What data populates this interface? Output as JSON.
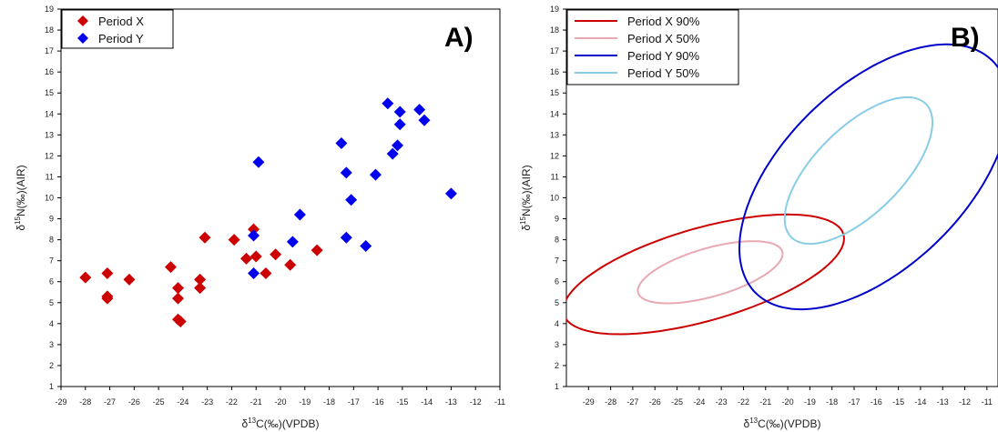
{
  "chart_data": [
    {
      "type": "scatter",
      "panel_label": "A)",
      "xlabel": "δ13C(‰)(VPDB)",
      "ylabel": "δ15N(‰)(AIR)",
      "xlabel_parts": {
        "pre": "δ",
        "sup": "13",
        "post": "C(‰)(VPDB)"
      },
      "ylabel_parts": {
        "pre": "δ",
        "sup": "15",
        "post": "N(‰)(AIR)"
      },
      "xlim": [
        -29,
        -11
      ],
      "ylim": [
        1,
        19
      ],
      "x_ticks": [
        "-29",
        "-28",
        "-27",
        "-26",
        "-25",
        "-24",
        "-23",
        "-22",
        "-21",
        "-20",
        "-19",
        "-18",
        "-17",
        "-16",
        "-15",
        "-14",
        "-13",
        "-12",
        "-11"
      ],
      "y_ticks": [
        "1",
        "2",
        "3",
        "4",
        "5",
        "6",
        "7",
        "8",
        "9",
        "10",
        "11",
        "12",
        "13",
        "14",
        "15",
        "16",
        "17",
        "18",
        "19"
      ],
      "legend_position": "top-left",
      "series": [
        {
          "name": "Period X",
          "color": "#cc0000",
          "marker": "diamond",
          "points": [
            [
              -28.0,
              6.2
            ],
            [
              -27.1,
              6.4
            ],
            [
              -27.1,
              5.3
            ],
            [
              -27.1,
              5.2
            ],
            [
              -26.2,
              6.1
            ],
            [
              -24.5,
              6.7
            ],
            [
              -24.2,
              5.7
            ],
            [
              -24.2,
              5.2
            ],
            [
              -24.2,
              4.2
            ],
            [
              -24.1,
              4.1
            ],
            [
              -23.3,
              6.1
            ],
            [
              -23.3,
              5.7
            ],
            [
              -23.1,
              8.1
            ],
            [
              -21.9,
              8.0
            ],
            [
              -21.4,
              7.1
            ],
            [
              -21.1,
              8.5
            ],
            [
              -21.0,
              7.2
            ],
            [
              -20.6,
              6.4
            ],
            [
              -20.2,
              7.3
            ],
            [
              -19.6,
              6.8
            ],
            [
              -18.5,
              7.5
            ]
          ]
        },
        {
          "name": "Period Y",
          "color": "#0000ee",
          "marker": "diamond",
          "points": [
            [
              -21.1,
              8.2
            ],
            [
              -21.1,
              6.4
            ],
            [
              -20.9,
              11.7
            ],
            [
              -19.5,
              7.9
            ],
            [
              -19.2,
              9.2
            ],
            [
              -17.5,
              12.6
            ],
            [
              -17.3,
              11.2
            ],
            [
              -17.3,
              8.1
            ],
            [
              -17.1,
              9.9
            ],
            [
              -16.5,
              7.7
            ],
            [
              -16.1,
              11.1
            ],
            [
              -15.6,
              14.5
            ],
            [
              -15.4,
              12.1
            ],
            [
              -15.2,
              12.5
            ],
            [
              -15.1,
              14.1
            ],
            [
              -15.1,
              13.5
            ],
            [
              -14.3,
              14.2
            ],
            [
              -14.1,
              13.7
            ],
            [
              -13.0,
              10.2
            ]
          ]
        }
      ]
    },
    {
      "type": "contour",
      "panel_label": "B)",
      "xlabel": "δ13C(‰)(VPDB)",
      "ylabel": "δ15N(‰)(AIR)",
      "xlabel_parts": {
        "pre": "δ",
        "sup": "13",
        "post": "C(‰)(VPDB)"
      },
      "ylabel_parts": {
        "pre": "δ",
        "sup": "15",
        "post": "N(‰)(AIR)"
      },
      "xlim": [
        -30,
        -10.5
      ],
      "ylim": [
        1,
        19
      ],
      "x_ticks": [
        "-29",
        "-28",
        "-27",
        "-26",
        "-25",
        "-24",
        "-23",
        "-22",
        "-21",
        "-20",
        "-19",
        "-18",
        "-17",
        "-16",
        "-15",
        "-14",
        "-13",
        "-12",
        "-11"
      ],
      "y_ticks": [
        "1",
        "2",
        "3",
        "4",
        "5",
        "6",
        "7",
        "8",
        "9",
        "10",
        "11",
        "12",
        "13",
        "14",
        "15",
        "16",
        "17",
        "18",
        "19"
      ],
      "legend_position": "top-left",
      "series": [
        {
          "name": "Period X 90%",
          "color": "#cc0000",
          "center": [
            -23.8,
            6.35
          ],
          "semi_axes": [
            6.6,
            2.2
          ],
          "angle_deg": 17
        },
        {
          "name": "Period X 50%",
          "color": "#e8a9b3",
          "center": [
            -23.5,
            6.45
          ],
          "semi_axes": [
            3.4,
            1.15
          ],
          "angle_deg": 17
        },
        {
          "name": "Period Y 90%",
          "color": "#0000cc",
          "center": [
            -16.1,
            11.0
          ],
          "semi_axes": [
            7.7,
            4.2
          ],
          "angle_deg": 47
        },
        {
          "name": "Period Y 50%",
          "color": "#87cde8",
          "center": [
            -16.8,
            11.3
          ],
          "semi_axes": [
            4.4,
            2.0
          ],
          "angle_deg": 47
        }
      ]
    }
  ]
}
